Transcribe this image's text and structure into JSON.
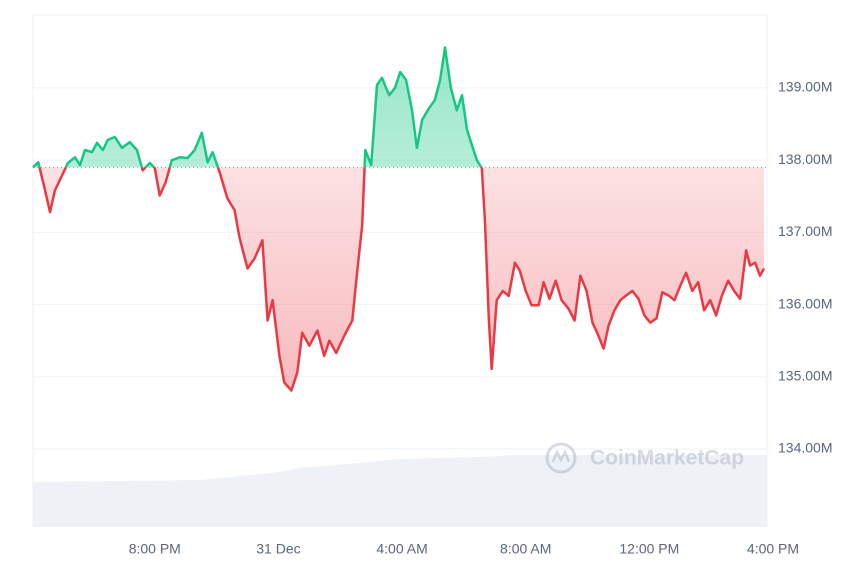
{
  "chart_data": {
    "type": "line",
    "watermark": "CoinMarketCap",
    "baseline": 137.9,
    "colors": {
      "up": "#16c784",
      "down": "#ea3943"
    },
    "grid": true,
    "xlim": [
      -3.94,
      20
    ],
    "xticks": [
      {
        "value": 0,
        "label": "8:00 PM"
      },
      {
        "value": 4,
        "label": "31 Dec"
      },
      {
        "value": 8,
        "label": "4:00 AM"
      },
      {
        "value": 12,
        "label": "8:00 AM"
      },
      {
        "value": 16,
        "label": "12:00 PM"
      },
      {
        "value": 20,
        "label": "4:00 PM"
      }
    ],
    "ylim": [
      132.92,
      140.01
    ],
    "yticks": [
      {
        "value": 134,
        "label": "134.00M"
      },
      {
        "value": 135,
        "label": "135.00M"
      },
      {
        "value": 136,
        "label": "136.00M"
      },
      {
        "value": 137,
        "label": "137.00M"
      },
      {
        "value": 138,
        "label": "138.00M"
      },
      {
        "value": 139,
        "label": "139.00M"
      }
    ],
    "x": [
      -3.94,
      -3.77,
      -3.55,
      -3.39,
      -3.23,
      -3.0,
      -2.81,
      -2.58,
      -2.42,
      -2.26,
      -2.03,
      -1.87,
      -1.68,
      -1.52,
      -1.29,
      -1.06,
      -0.81,
      -0.58,
      -0.39,
      -0.16,
      0,
      0.16,
      0.35,
      0.55,
      0.81,
      1.06,
      1.29,
      1.52,
      1.71,
      1.87,
      2.1,
      2.35,
      2.58,
      2.74,
      3.0,
      3.23,
      3.48,
      3.65,
      3.81,
      4.03,
      4.19,
      4.42,
      4.61,
      4.77,
      5.0,
      5.26,
      5.48,
      5.65,
      5.87,
      6.13,
      6.39,
      6.55,
      6.71,
      6.81,
      7.0,
      7.19,
      7.35,
      7.58,
      7.77,
      7.94,
      8.13,
      8.32,
      8.48,
      8.65,
      8.87,
      9.06,
      9.23,
      9.39,
      9.58,
      9.77,
      9.94,
      10.1,
      10.26,
      10.42,
      10.58,
      10.68,
      10.81,
      10.9,
      11.06,
      11.26,
      11.45,
      11.65,
      11.81,
      12.0,
      12.19,
      12.42,
      12.58,
      12.77,
      12.97,
      13.16,
      13.39,
      13.58,
      13.77,
      13.97,
      14.16,
      14.35,
      14.52,
      14.68,
      14.87,
      15.06,
      15.26,
      15.45,
      15.65,
      15.84,
      16.03,
      16.23,
      16.42,
      16.61,
      16.81,
      17.0,
      17.19,
      17.39,
      17.58,
      17.77,
      17.97,
      18.16,
      18.35,
      18.55,
      18.74,
      18.94,
      19.13,
      19.26,
      19.42,
      19.58,
      19.71
    ],
    "values": [
      137.9,
      137.97,
      137.58,
      137.28,
      137.58,
      137.79,
      137.96,
      138.04,
      137.93,
      138.14,
      138.11,
      138.24,
      138.14,
      138.28,
      138.32,
      138.17,
      138.25,
      138.14,
      137.86,
      137.96,
      137.89,
      137.51,
      137.69,
      138.0,
      138.04,
      138.03,
      138.14,
      138.38,
      137.97,
      138.11,
      137.83,
      137.47,
      137.31,
      136.93,
      136.5,
      136.64,
      136.89,
      135.78,
      136.06,
      135.29,
      134.92,
      134.81,
      135.06,
      135.61,
      135.43,
      135.64,
      135.29,
      135.5,
      135.33,
      135.57,
      135.78,
      136.47,
      137.1,
      138.14,
      137.93,
      139.04,
      139.14,
      138.9,
      139.0,
      139.22,
      139.11,
      138.69,
      138.17,
      138.56,
      138.72,
      138.83,
      139.11,
      139.56,
      139.0,
      138.69,
      138.9,
      138.42,
      138.21,
      138.0,
      137.89,
      137.17,
      135.78,
      135.11,
      136.06,
      136.19,
      136.12,
      136.58,
      136.47,
      136.19,
      135.99,
      135.99,
      136.31,
      136.08,
      136.33,
      136.06,
      135.94,
      135.78,
      136.4,
      136.19,
      135.75,
      135.57,
      135.39,
      135.71,
      135.92,
      136.06,
      136.13,
      136.19,
      136.08,
      135.85,
      135.75,
      135.81,
      136.17,
      136.13,
      136.06,
      136.26,
      136.44,
      136.19,
      136.31,
      135.92,
      136.06,
      135.85,
      136.13,
      136.33,
      136.19,
      136.08,
      136.75,
      136.54,
      136.58,
      136.4,
      136.5
    ]
  }
}
